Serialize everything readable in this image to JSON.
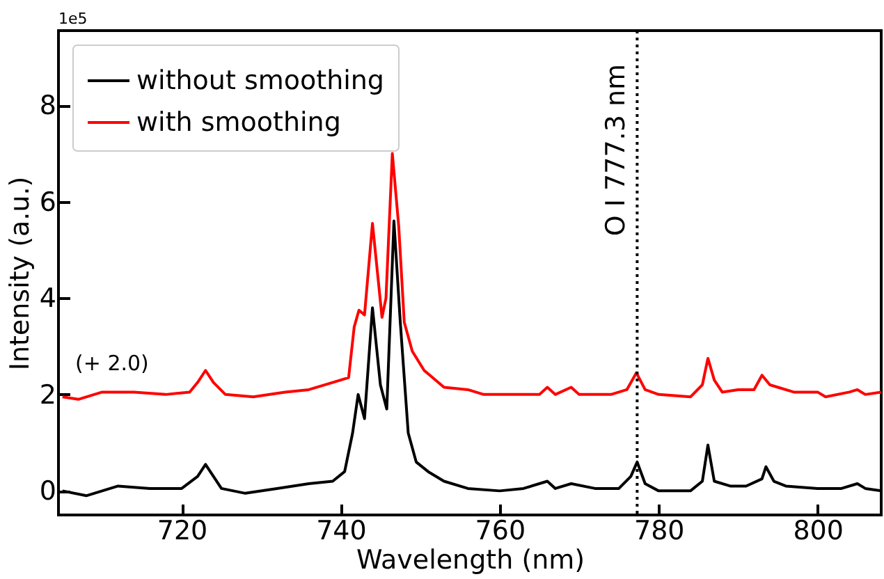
{
  "chart_data": {
    "type": "line",
    "xlabel": "Wavelength (nm)",
    "ylabel": "Intensity (a.u.)",
    "xlim": [
      704.5,
      808
    ],
    "ylim": [
      -0.5,
      9.55
    ],
    "xticks": [
      720,
      740,
      760,
      780,
      800
    ],
    "yticks": [
      0,
      2,
      4,
      6,
      8
    ],
    "grid": false,
    "legend": "top left",
    "line_style": "solid",
    "series": [
      {
        "name": "without smoothing",
        "color": "#000000",
        "x": [
          705,
          708,
          712,
          716,
          720,
          722,
          723,
          724,
          725,
          728,
          732,
          736,
          739,
          740.5,
          741.5,
          742.2,
          743,
          744,
          745,
          745.8,
          746.7,
          747.5,
          748.5,
          749.5,
          751,
          753,
          756,
          760,
          763,
          766,
          767,
          769,
          772,
          775,
          776.5,
          777.3,
          778.3,
          780,
          784,
          785.5,
          786.2,
          787,
          789,
          791,
          793,
          793.5,
          794.5,
          796,
          800,
          803,
          805,
          806,
          808
        ],
        "values": [
          0.0,
          -0.1,
          0.1,
          0.05,
          0.05,
          0.3,
          0.55,
          0.3,
          0.05,
          -0.05,
          0.05,
          0.15,
          0.2,
          0.4,
          1.2,
          2.0,
          1.5,
          3.8,
          2.2,
          1.7,
          5.6,
          3.5,
          1.2,
          0.6,
          0.4,
          0.2,
          0.05,
          0.0,
          0.05,
          0.2,
          0.05,
          0.15,
          0.05,
          0.05,
          0.3,
          0.6,
          0.15,
          0.0,
          0.0,
          0.2,
          0.95,
          0.2,
          0.1,
          0.1,
          0.25,
          0.5,
          0.2,
          0.1,
          0.05,
          0.05,
          0.15,
          0.05,
          0.0
        ]
      },
      {
        "name": "with smoothing",
        "color": "#ff0000",
        "x": [
          705,
          707,
          710,
          714,
          718,
          721,
          722,
          723,
          724,
          725.5,
          729,
          733,
          736,
          740,
          741,
          741.7,
          742.3,
          743,
          744,
          745.2,
          745.7,
          746.5,
          747.3,
          748,
          749,
          750.5,
          753,
          756,
          758,
          762,
          765,
          766,
          767,
          769,
          770,
          774,
          776,
          777.2,
          778.3,
          780,
          784,
          785.5,
          786.2,
          787,
          788,
          790,
          792,
          793,
          794,
          795,
          797,
          800,
          801,
          804,
          805,
          806,
          808
        ],
        "values": [
          1.95,
          1.9,
          2.05,
          2.05,
          2.0,
          2.05,
          2.25,
          2.5,
          2.25,
          2.0,
          1.95,
          2.05,
          2.1,
          2.3,
          2.35,
          3.4,
          3.75,
          3.65,
          5.55,
          3.6,
          4.0,
          7.0,
          5.5,
          3.5,
          2.9,
          2.5,
          2.15,
          2.1,
          2.0,
          2.0,
          2.0,
          2.15,
          2.0,
          2.15,
          2.0,
          2.0,
          2.1,
          2.45,
          2.1,
          2.0,
          1.95,
          2.2,
          2.75,
          2.3,
          2.05,
          2.1,
          2.1,
          2.4,
          2.2,
          2.15,
          2.05,
          2.05,
          1.95,
          2.05,
          2.1,
          2.0,
          2.05
        ]
      }
    ],
    "ref_lines": [
      {
        "axis": "x",
        "value": 777.3,
        "label": "O I 777.3 nm",
        "color": "#000000",
        "line_style": "dotted"
      }
    ],
    "annotations": [
      "1e5",
      "(+ 2.0)"
    ]
  }
}
